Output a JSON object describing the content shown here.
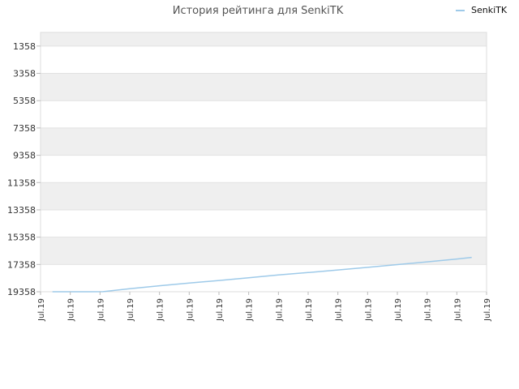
{
  "chart_data": {
    "type": "line",
    "title": "История рейтинга для SenkiTK",
    "legend": {
      "placement": "top-right"
    },
    "y_axis": {
      "reversed": true,
      "range": [
        358,
        19358
      ],
      "tick_values": [
        1358,
        3358,
        5358,
        7358,
        9358,
        11358,
        13358,
        15358,
        17358,
        19358
      ],
      "tick_labels": [
        "1358",
        "3358",
        "5358",
        "7358",
        "9358",
        "11358",
        "13358",
        "15358",
        "17358",
        "19358"
      ]
    },
    "x_axis": {
      "range": [
        0,
        15
      ],
      "tick_labels": [
        "Jul.19",
        "Jul.19",
        "Jul.19",
        "Jul.19",
        "Jul.19",
        "Jul.19",
        "Jul.19",
        "Jul.19",
        "Jul.19",
        "Jul.19",
        "Jul.19",
        "Jul.19",
        "Jul.19",
        "Jul.19",
        "Jul.19",
        "Jul.19"
      ]
    },
    "grid": true,
    "series": [
      {
        "name": "SenkiTK",
        "color": "#9ecae9",
        "x": [
          0.4,
          1.0,
          1.6,
          2.1,
          3,
          4,
          5,
          6,
          7,
          8,
          9,
          10,
          11,
          12,
          13,
          14,
          14.5
        ],
        "values": [
          19358,
          19358,
          19358,
          19350,
          19130,
          18920,
          18720,
          18530,
          18330,
          18130,
          17950,
          17760,
          17570,
          17370,
          17170,
          16960,
          16840
        ]
      }
    ]
  }
}
